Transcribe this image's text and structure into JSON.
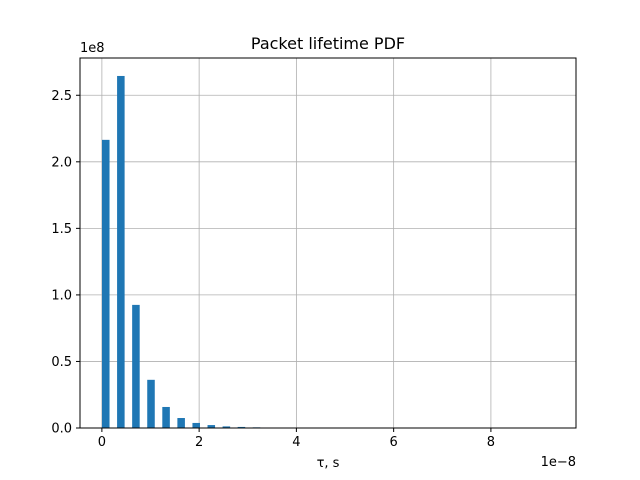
{
  "chart_data": {
    "type": "bar",
    "title": "Packet lifetime PDF",
    "xlabel": "τ, s",
    "ylabel": "",
    "x_offset_label": "1e−8",
    "y_offset_label": "1e8",
    "xlim": [
      -0.45,
      9.75
    ],
    "ylim": [
      0,
      2.78
    ],
    "x_ticks": [
      0,
      2,
      4,
      6,
      8
    ],
    "x_tick_labels": [
      "0",
      "2",
      "4",
      "6",
      "8"
    ],
    "y_ticks": [
      0.0,
      0.5,
      1.0,
      1.5,
      2.0,
      2.5
    ],
    "y_tick_labels": [
      "0.0",
      "0.5",
      "1.0",
      "1.5",
      "2.0",
      "2.5"
    ],
    "grid": true,
    "bar_color": "#1f77b4",
    "bar_width": 0.155,
    "x": [
      0.08,
      0.39,
      0.7,
      1.01,
      1.32,
      1.63,
      1.94,
      2.25,
      2.56,
      2.87,
      3.18,
      3.49,
      3.8,
      4.11,
      4.42,
      4.73,
      5.04,
      5.35,
      5.66,
      5.97,
      6.28,
      6.59,
      6.9,
      7.21,
      7.52,
      7.83,
      8.14,
      8.45,
      8.76,
      9.07
    ],
    "values": [
      2.165,
      2.645,
      0.925,
      0.362,
      0.158,
      0.075,
      0.038,
      0.022,
      0.012,
      0.008,
      0.005,
      0.003,
      0.002,
      0.0015,
      0.001,
      0.0008,
      0.0006,
      0.0005,
      0.0004,
      0.0003,
      0.0003,
      0.0002,
      0.0002,
      0.0002,
      0.0001,
      0.0001,
      0.0001,
      0.0001,
      0.0001,
      0.0001
    ]
  }
}
